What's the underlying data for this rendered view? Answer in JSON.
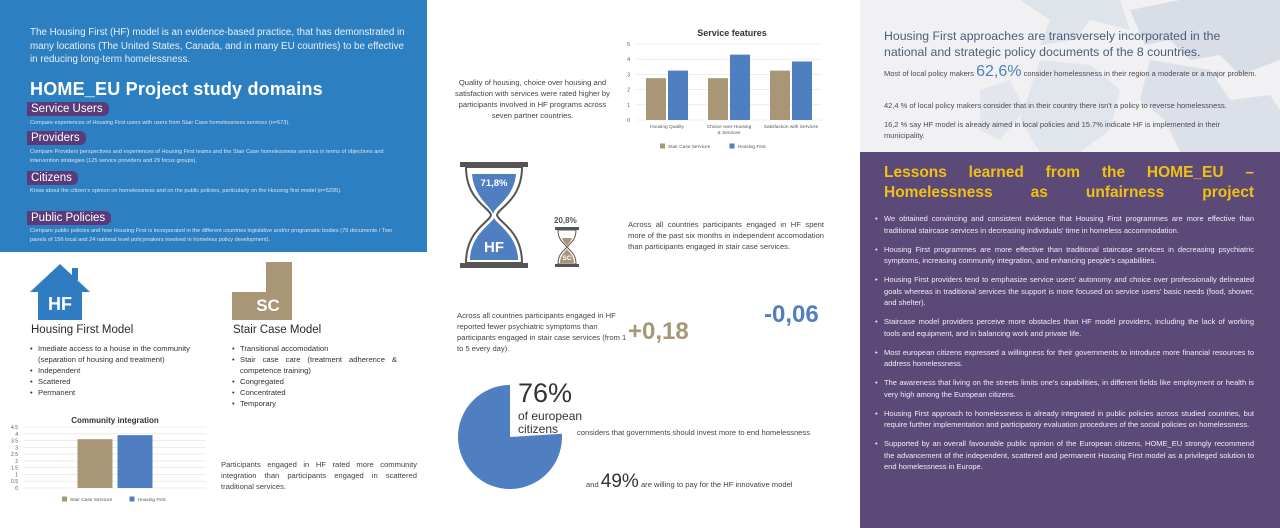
{
  "left": {
    "intro": "The Housing First (HF) model is an evidence-based practice, that has demonstrated in many locations (The United States, Canada, and in many EU countries) to be effective in reducing long-term homelessness.",
    "domains_title": "HOME_EU Project study domains",
    "domains": [
      {
        "label": "Service Users",
        "desc": "Compare experiences of Housing First users with users from Stair Case homelessness services (n=573)."
      },
      {
        "label": "Providers",
        "desc": "Compare Providers perspectives and experiences of Housing First teams and the Stair Case homelessness services in terms of objectives and intervention strategies (125 service providers and 29 focus groups)."
      },
      {
        "label": "Citizens",
        "desc": "Know about the citizen's opinion on homelessness and on the public policies, particularly on the Housing first model (n=5295)."
      },
      {
        "label": "Public Policies",
        "desc": "Compare public policies and how Housing First is incorporated in the different countries legislative and/or programatic bodies (79 documents / Two panels of 156 local and 24 national level policymakers involved in homeless policy development)."
      }
    ],
    "hf_model": {
      "icon_text": "HF",
      "title": "Housing First Model",
      "items": [
        "Imediate access to a house in the community (separation of housing and treatment)",
        "Independent",
        "Scattered",
        "Permanent"
      ]
    },
    "sc_model": {
      "icon_text": "SC",
      "title": "Stair Case Model",
      "items": [
        "Transitional accomodation",
        "Stair case care (treatment adherence & competence training)",
        "Congregated",
        "Concentrated",
        "Temporary"
      ]
    },
    "community_text": "Participants engaged in HF rated more community integration than participants engaged in scattered traditional services."
  },
  "middle": {
    "quality_text": "Quality of housing, choice over housing and satisfaction with services were rated higher by participants involved in HF programs across seven partner countries.",
    "hourglass_big": "71,8%",
    "hourglass_big_label": "HF",
    "hourglass_small": "20,8%",
    "hourglass_small_label": "SC",
    "hourglass_text": "Across all countries participants engaged in HF spent more of the past six months in independent accomodation than participants engaged in stair case services.",
    "psych_text": "Across all countries participants engaged in HF reported fewer psychiatric symptoms than participants engaged in stair case services (from 1 to 5 every day).",
    "psych_hf": "-0,06",
    "psych_sc": "+0,18",
    "pie_percent": "76%",
    "pie_line1": "of european",
    "pie_line2": "citizens",
    "pie_text": "considers that governments should invest more to end homelessness",
    "pay_prefix": "and",
    "pay_percent": "49%",
    "pay_text": "are willing to pay for the HF innovative model",
    "pie_value": 0.76
  },
  "right": {
    "heading": "Housing First approaches are transversely incorporated in the national and strategic policy documents of the 8 countries.",
    "stat1_prefix": "Most of local policy makers",
    "stat1_value": "62,6%",
    "stat1_suffix": "consider homelessness in their region a moderate or a major problem.",
    "stat2": "42,4 % of local policy makers consider that in their country there isn't a policy to reverse homelessness.",
    "stat3": "16,2 % say HF model is already aimed in local policies and 15.7% indicate HF is implemented in their municipality.",
    "lessons_title": "Lessons learned from the HOME_EU – Homelessness as unfairness project",
    "lessons": [
      "We obtained convincing and consistent evidence that Housing First programmes are more effective than traditional staircase services in decreasing individuals' time in homeless accommodation.",
      "Housing First programmes are more effective than traditional staircase services in decreasing psychiatric symptoms, increasing community integration, and enhancing people's capabilities.",
      "Housing First providers tend to emphasize service users' autonomy and choice over professionally delineated goals whereas in traditional services the support is more focused on service users' basic needs (food, shower, and shelter).",
      "Staircase model providers perceive more obstacles than HF model providers, including the lack of working tools and equipment, and in balancing work and private life.",
      "Most european citizens expressed a willingness for their governments to introduce more financial resources to address homelessness.",
      "The awareness that living on the streets limits one's capabilities, in different fields like employment or health is very high among the European citizens.",
      "Housing First approach to homelessness is already integrated in public policies across studied countries, but require further implementation and participatory evaluation procedures of the social policies on homelessness.",
      "Supported by an overall favourable public opinion of the European citizens, HOME_EU strongly recommend the advancement of the independent, scattered and permanent Housing First model as a privileged solution to end homelessness in Europe."
    ]
  },
  "colors": {
    "blue": "#2c7fc0",
    "purple": "#5b4a78",
    "tan": "#a89677",
    "bar_blue": "#4f7fc0",
    "yellow": "#f2c012"
  },
  "chart_data": [
    {
      "type": "bar",
      "title": "Service features",
      "categories": [
        "Housing Quality",
        "Choice over Housing & Services",
        "Satisfaction with Services"
      ],
      "series": [
        {
          "name": "Stair Case Services",
          "values": [
            2.75,
            2.75,
            3.25
          ]
        },
        {
          "name": "Housing First",
          "values": [
            3.25,
            4.3,
            3.85
          ]
        }
      ],
      "ylim": [
        0,
        5
      ],
      "yticks": [
        "0",
        "1",
        "2",
        "3",
        "4",
        "5"
      ],
      "colors": [
        "#a89677",
        "#4f7fc0"
      ],
      "legend": "bottom"
    },
    {
      "type": "bar",
      "title": "Community integration",
      "categories": [
        ""
      ],
      "series": [
        {
          "name": "Stair Case Services",
          "values": [
            3.6
          ]
        },
        {
          "name": "Housing First",
          "values": [
            3.9
          ]
        }
      ],
      "ylim": [
        0,
        4.5
      ],
      "yticks": [
        "0",
        "0.5",
        "1",
        "1.5",
        "2",
        "2.5",
        "3",
        "3.5",
        "4",
        "4.5"
      ],
      "colors": [
        "#a89677",
        "#4f7fc0"
      ],
      "legend": "bottom"
    }
  ]
}
